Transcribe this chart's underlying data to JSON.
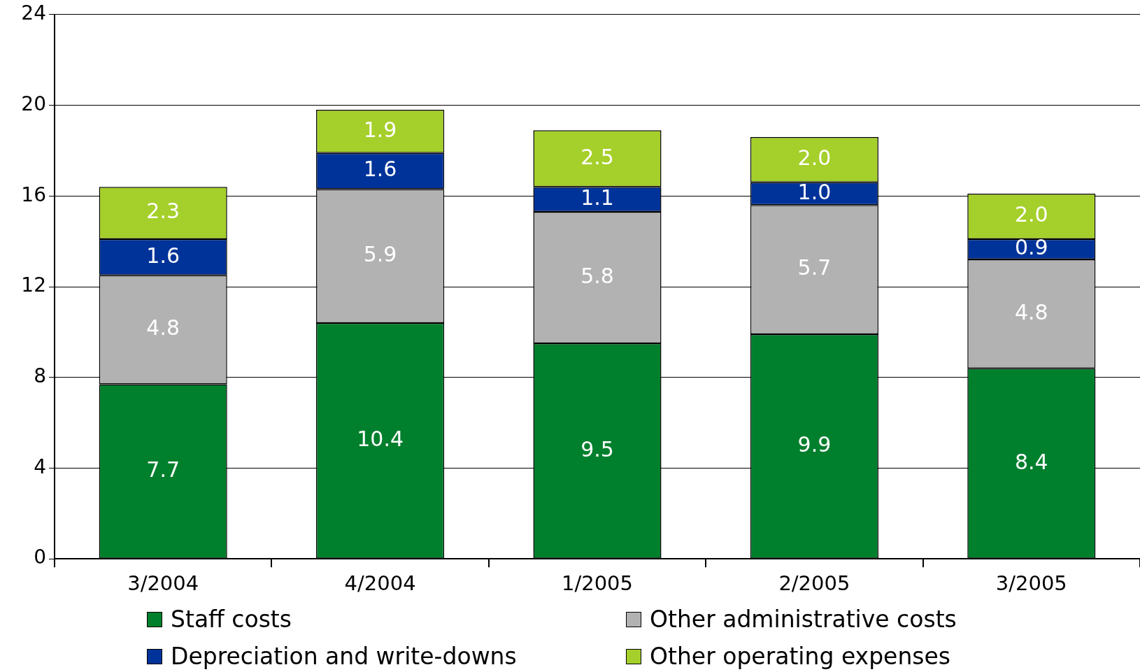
{
  "chart_data": {
    "type": "bar",
    "stacked": true,
    "categories": [
      "3/2004",
      "4/2004",
      "1/2005",
      "2/2005",
      "3/2005"
    ],
    "series": [
      {
        "name": "Staff costs",
        "color": "#007f2d",
        "values": [
          7.7,
          10.4,
          9.5,
          9.9,
          8.4
        ],
        "value_labels": [
          "7.7",
          "10.4",
          "9.5",
          "9.9",
          "8.4"
        ]
      },
      {
        "name": "Other administrative costs",
        "color": "#b2b2b2",
        "values": [
          4.8,
          5.9,
          5.8,
          5.7,
          4.8
        ],
        "value_labels": [
          "4.8",
          "5.9",
          "5.8",
          "5.7",
          "4.8"
        ]
      },
      {
        "name": "Depreciation and write-downs",
        "color": "#003399",
        "values": [
          1.6,
          1.6,
          1.1,
          1.0,
          0.9
        ],
        "value_labels": [
          "1.6",
          "1.6",
          "1.1",
          "1.0",
          "0.9"
        ]
      },
      {
        "name": "Other operating expenses",
        "color": "#a5cf2a",
        "values": [
          2.3,
          1.9,
          2.5,
          2.0,
          2.0
        ],
        "value_labels": [
          "2.3",
          "1.9",
          "2.5",
          "2.0",
          "2.0"
        ]
      }
    ],
    "ylim": [
      0,
      24
    ],
    "yticks": [
      0,
      4,
      8,
      12,
      16,
      20,
      24
    ],
    "grid": "y",
    "legend": "bottom"
  }
}
